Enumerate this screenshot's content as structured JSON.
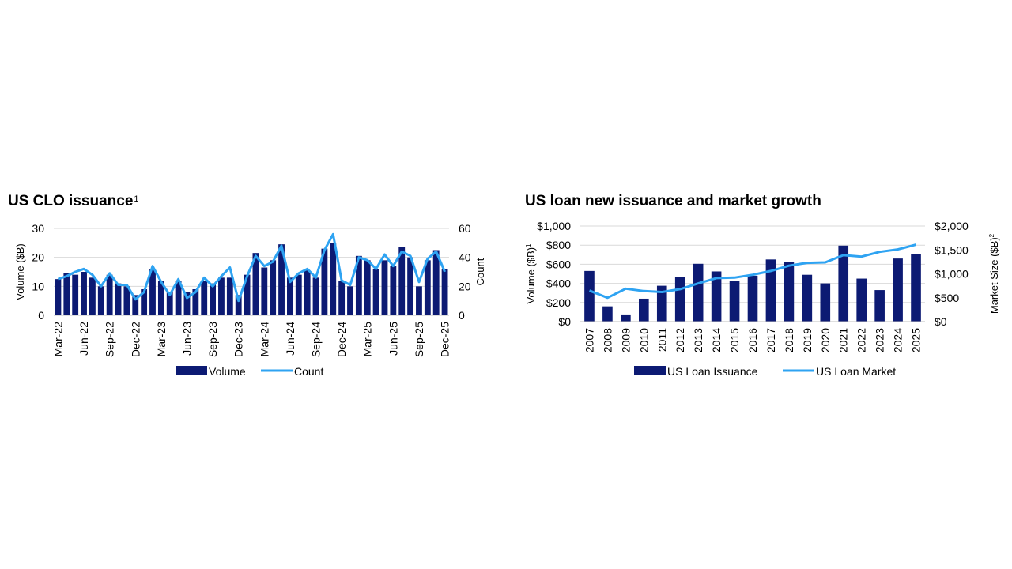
{
  "colors": {
    "bar": "#0c1a73",
    "line": "#2ea3f2",
    "grid": "#d9d9d9",
    "text": "#000000"
  },
  "chart_data": [
    {
      "type": "bar",
      "title": "US CLO issuance",
      "title_footnote": "1",
      "ylabel": "Volume ($B)",
      "y2label": "Count",
      "ylim": [
        0,
        30
      ],
      "y2lim": [
        0,
        60
      ],
      "yticks": [
        "0",
        "10",
        "20",
        "30"
      ],
      "y2ticks": [
        "0",
        "20",
        "40",
        "60"
      ],
      "grid": true,
      "legend": "bottom-center",
      "tick_labels": [
        "Mar-22",
        "Jun-22",
        "Sep-22",
        "Dec-22",
        "Mar-23",
        "Jun-23",
        "Sep-23",
        "Dec-23",
        "Mar-24",
        "Jun-24",
        "Sep-24",
        "Dec-24",
        "Mar-25",
        "Jun-25",
        "Sep-25",
        "Dec-25"
      ],
      "series": [
        {
          "name": "Volume",
          "kind": "bar",
          "axis": "left",
          "values": [
            12.5,
            14.5,
            14,
            15,
            13,
            10,
            14,
            11,
            10,
            7,
            9,
            16,
            12,
            8,
            12,
            8,
            9,
            12,
            11,
            13,
            13,
            7,
            14,
            21.5,
            16.5,
            19,
            24.5,
            13,
            14,
            15.5,
            13,
            23,
            25,
            12,
            10,
            20.5,
            19,
            16,
            19,
            17,
            23.5,
            20,
            10,
            19,
            22.5,
            16
          ]
        },
        {
          "name": "Count",
          "kind": "line",
          "axis": "right",
          "values": [
            25,
            27,
            30,
            32,
            28,
            20,
            29,
            21,
            21,
            11,
            16,
            34,
            23,
            14,
            25,
            12,
            16,
            26,
            20,
            27,
            33,
            10,
            27,
            41,
            34,
            37,
            48,
            23,
            29,
            32,
            26,
            45,
            56,
            24,
            21,
            40,
            38,
            32,
            42,
            34,
            44,
            41,
            23,
            39,
            44,
            30
          ]
        }
      ]
    },
    {
      "type": "bar",
      "title": "US loan new issuance and market growth",
      "ylabel": "Volume ($B)",
      "ylabel_footnote": "1",
      "y2label": "Market Size ($B)",
      "y2label_footnote": "2",
      "ylim": [
        0,
        1000
      ],
      "y2lim": [
        0,
        2000
      ],
      "yticks": [
        "$0",
        "$200",
        "$400",
        "$600",
        "$800",
        "$1,000"
      ],
      "y2ticks": [
        "$0",
        "$500",
        "$1,000",
        "$1,500",
        "$2,000"
      ],
      "grid": true,
      "legend": "bottom-center",
      "categories": [
        "2007",
        "2008",
        "2009",
        "2010",
        "2011",
        "2012",
        "2013",
        "2014",
        "2015",
        "2016",
        "2017",
        "2018",
        "2019",
        "2020",
        "2021",
        "2022",
        "2023",
        "2024",
        "2025"
      ],
      "series": [
        {
          "name": "US Loan Issuance",
          "kind": "bar",
          "axis": "left",
          "values": [
            530,
            160,
            75,
            240,
            375,
            465,
            605,
            525,
            425,
            480,
            650,
            625,
            490,
            400,
            795,
            450,
            330,
            660,
            705
          ]
        },
        {
          "name": "US Loan Market",
          "kind": "line",
          "axis": "right",
          "values": [
            650,
            500,
            690,
            640,
            620,
            680,
            800,
            910,
            920,
            980,
            1060,
            1170,
            1230,
            1240,
            1390,
            1360,
            1460,
            1510,
            1610
          ]
        }
      ]
    }
  ]
}
